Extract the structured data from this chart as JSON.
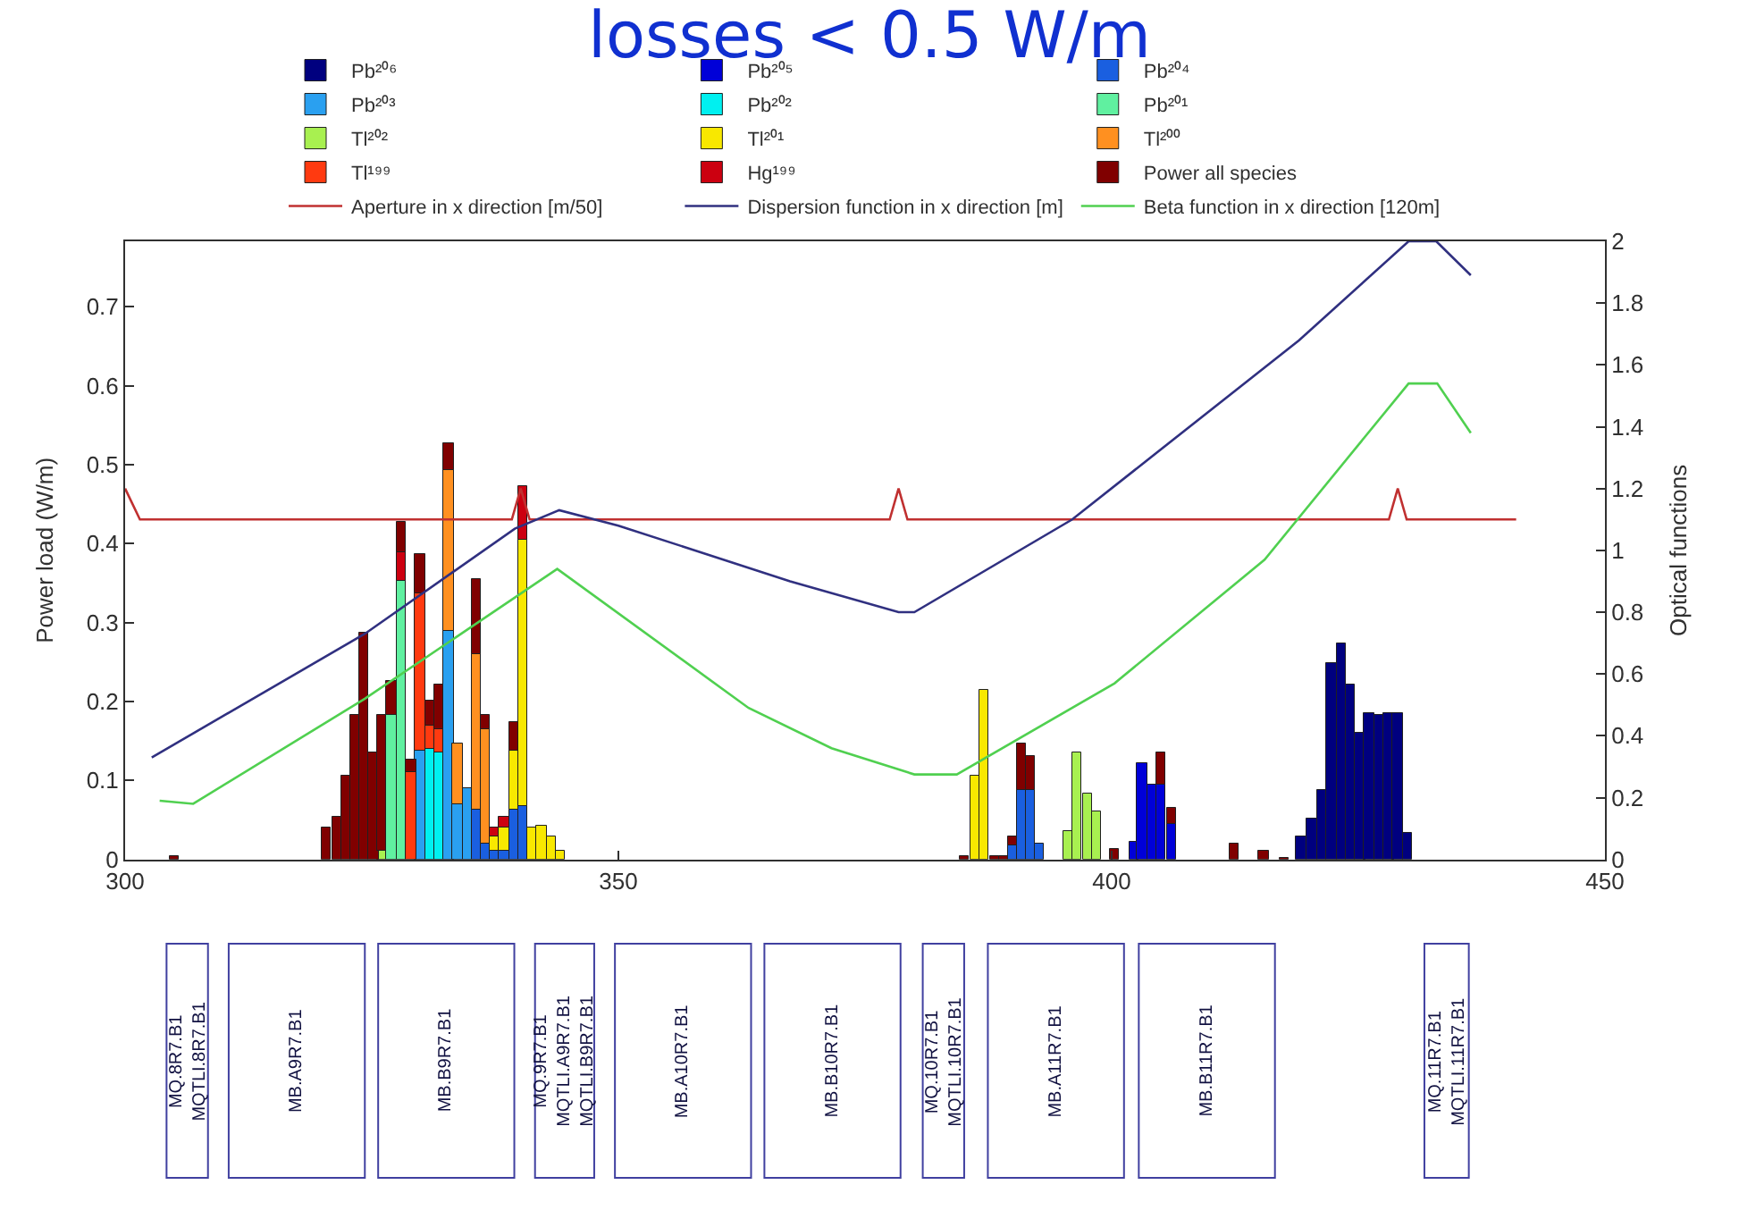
{
  "chart_data": [
    {
      "type": "bar",
      "stacked": true,
      "title": "losses < 0.5 W/m",
      "ylabel": "Power load (W/m)",
      "y2label": "Optical functions",
      "xlim": [
        300,
        450
      ],
      "xticks": [
        300,
        350,
        400,
        450
      ],
      "ylim": [
        0,
        0.783
      ],
      "yticks": [
        0,
        0.1,
        0.2,
        0.3,
        0.4,
        0.5,
        0.6,
        0.7
      ],
      "y2lim": [
        0,
        2
      ],
      "y2ticks": [
        0,
        0.2,
        0.4,
        0.6,
        0.8,
        1,
        1.2,
        1.4,
        1.6,
        1.8,
        2
      ],
      "legend": "top",
      "marker": "none",
      "line_style": "solid",
      "x": [
        305.0,
        320.4,
        321.4,
        322.4,
        323.3,
        324.2,
        325.2,
        326.0,
        327.0,
        328.0,
        329.0,
        329.9,
        330.9,
        331.8,
        332.8,
        333.7,
        334.7,
        335.6,
        336.5,
        337.4,
        338.4,
        339.4,
        340.3,
        341.2,
        342.2,
        343.2,
        344.1,
        385.1,
        386.1,
        387.0,
        388.1,
        389.0,
        389.9,
        390.8,
        391.7,
        392.7,
        395.6,
        396.5,
        397.5,
        398.5,
        400.3,
        402.3,
        403.1,
        404.1,
        405.0,
        406.0,
        412.4,
        415.4,
        417.5,
        419.2,
        420.3,
        421.3,
        422.3,
        423.3,
        424.2,
        425.2,
        426.1,
        427.1,
        428.1,
        429.0,
        430.0
      ],
      "series": [
        {
          "name": "Pb²⁰⁶",
          "color": "#00007f",
          "values": [
            null,
            null,
            null,
            null,
            null,
            null,
            null,
            null,
            null,
            null,
            null,
            null,
            null,
            null,
            null,
            null,
            null,
            null,
            null,
            null,
            null,
            null,
            null,
            null,
            null,
            null,
            null,
            null,
            null,
            null,
            null,
            null,
            null,
            null,
            null,
            null,
            null,
            null,
            null,
            null,
            null,
            null,
            null,
            null,
            null,
            null,
            null,
            null,
            null,
            0.028,
            0.052,
            0.088,
            0.248,
            0.273,
            0.221,
            0.161,
            0.185,
            0.182,
            0.185,
            0.185,
            0.034
          ]
        },
        {
          "name": "Pb²⁰⁵",
          "color": "#0000d8",
          "values": [
            null,
            null,
            null,
            null,
            null,
            null,
            null,
            null,
            null,
            null,
            null,
            null,
            null,
            null,
            null,
            null,
            null,
            null,
            null,
            null,
            null,
            null,
            null,
            null,
            null,
            null,
            null,
            null,
            null,
            null,
            null,
            null,
            null,
            null,
            null,
            null,
            null,
            null,
            null,
            null,
            null,
            0.022,
            0.121,
            0.094,
            0.094,
            0.045,
            null,
            null,
            null,
            null,
            null,
            null,
            null,
            null,
            null,
            null,
            null,
            null,
            null,
            null,
            null
          ]
        },
        {
          "name": "Pb²⁰⁴",
          "color": "#1a5fe0",
          "values": [
            null,
            null,
            null,
            null,
            null,
            null,
            null,
            null,
            null,
            null,
            null,
            null,
            null,
            null,
            null,
            null,
            null,
            0.063,
            0.02,
            0.01,
            0.01,
            0.063,
            0.068,
            null,
            null,
            null,
            null,
            null,
            null,
            null,
            null,
            null,
            0.018,
            0.088,
            0.088,
            0.021,
            null,
            null,
            null,
            null,
            null,
            null,
            null,
            null,
            null,
            null,
            null,
            null,
            null,
            null,
            null,
            null,
            null,
            null,
            null,
            null,
            null,
            null,
            null,
            null,
            null
          ]
        },
        {
          "name": "Pb²⁰³",
          "color": "#2aa0f0",
          "values": [
            null,
            null,
            null,
            null,
            null,
            null,
            null,
            null,
            null,
            null,
            null,
            0.138,
            null,
            null,
            0.29,
            0.07,
            0.091,
            null,
            null,
            null,
            null,
            null,
            null,
            null,
            null,
            null,
            null,
            null,
            null,
            null,
            null,
            null,
            null,
            null,
            null,
            null,
            null,
            null,
            null,
            null,
            null,
            null,
            null,
            null,
            null,
            null,
            null,
            null,
            null,
            null,
            null,
            null,
            null,
            null,
            null,
            null,
            null,
            null,
            null,
            null,
            null
          ]
        },
        {
          "name": "Pb²⁰²",
          "color": "#00f0f0",
          "values": [
            null,
            null,
            null,
            null,
            null,
            null,
            null,
            null,
            null,
            null,
            null,
            null,
            0.14,
            0.135,
            null,
            null,
            null,
            null,
            null,
            null,
            null,
            null,
            null,
            null,
            null,
            null,
            null,
            null,
            null,
            null,
            null,
            null,
            null,
            null,
            null,
            null,
            null,
            null,
            null,
            null,
            null,
            null,
            null,
            null,
            null,
            null,
            null,
            null,
            null,
            null,
            null,
            null,
            null,
            null,
            null,
            null,
            null,
            null,
            null,
            null,
            null
          ]
        },
        {
          "name": "Pb²⁰¹",
          "color": "#60f0a0",
          "values": [
            null,
            null,
            null,
            null,
            null,
            null,
            null,
            null,
            0.182,
            0.353,
            null,
            null,
            null,
            null,
            null,
            null,
            null,
            null,
            null,
            null,
            null,
            null,
            null,
            null,
            null,
            null,
            null,
            null,
            null,
            null,
            null,
            null,
            null,
            null,
            null,
            null,
            null,
            null,
            null,
            null,
            null,
            null,
            null,
            null,
            null,
            null,
            null,
            null,
            null,
            null,
            null,
            null,
            null,
            null,
            null,
            null,
            null,
            null,
            null,
            null,
            null
          ]
        },
        {
          "name": "Tl²⁰²",
          "color": "#a8f050",
          "values": [
            null,
            null,
            null,
            null,
            null,
            null,
            null,
            0.012,
            null,
            null,
            null,
            null,
            null,
            null,
            null,
            null,
            null,
            null,
            null,
            null,
            null,
            null,
            null,
            null,
            null,
            null,
            null,
            null,
            null,
            null,
            null,
            null,
            null,
            null,
            null,
            null,
            0.036,
            0.135,
            0.083,
            0.061,
            null,
            null,
            null,
            null,
            null,
            null,
            null,
            null,
            null,
            null,
            null,
            null,
            null,
            null,
            null,
            null,
            null,
            null,
            null,
            null,
            null
          ]
        },
        {
          "name": "Tl²⁰¹",
          "color": "#f8e800",
          "values": [
            null,
            null,
            null,
            null,
            null,
            null,
            null,
            null,
            null,
            null,
            null,
            null,
            null,
            null,
            null,
            null,
            null,
            null,
            null,
            0.02,
            0.03,
            0.075,
            0.338,
            0.041,
            0.042,
            0.03,
            0.011,
            null,
            0.107,
            0.214,
            null,
            null,
            null,
            null,
            null,
            null,
            null,
            null,
            null,
            null,
            null,
            null,
            null,
            null,
            null,
            null,
            null,
            null,
            null,
            null,
            null,
            null,
            null,
            null,
            null,
            null,
            null,
            null,
            null,
            null,
            null
          ]
        },
        {
          "name": "Tl²⁰⁰",
          "color": "#ff9020",
          "values": [
            null,
            null,
            null,
            null,
            null,
            null,
            null,
            null,
            null,
            null,
            null,
            null,
            null,
            null,
            0.204,
            0.076,
            null,
            0.197,
            0.145,
            null,
            null,
            null,
            null,
            null,
            null,
            null,
            null,
            null,
            null,
            null,
            null,
            null,
            null,
            null,
            null,
            null,
            null,
            null,
            null,
            null,
            null,
            null,
            null,
            null,
            null,
            null,
            null,
            null,
            null,
            null,
            null,
            null,
            null,
            null,
            null,
            null,
            null,
            null,
            null,
            null,
            null
          ]
        },
        {
          "name": "Tl¹⁹⁹",
          "color": "#ff3a10",
          "values": [
            null,
            null,
            null,
            null,
            null,
            null,
            null,
            null,
            null,
            null,
            0.11,
            0.2,
            0.03,
            0.03,
            null,
            null,
            null,
            null,
            null,
            null,
            null,
            null,
            null,
            null,
            null,
            null,
            null,
            null,
            null,
            null,
            null,
            null,
            null,
            null,
            null,
            null,
            null,
            null,
            null,
            null,
            null,
            null,
            null,
            null,
            null,
            null,
            null,
            null,
            null,
            null,
            null,
            null,
            null,
            null,
            null,
            null,
            null,
            null,
            null,
            null,
            null
          ]
        },
        {
          "name": "Hg¹⁹⁹",
          "color": "#cc0010",
          "values": [
            null,
            null,
            null,
            null,
            null,
            null,
            null,
            null,
            null,
            0.035,
            null,
            null,
            null,
            null,
            null,
            null,
            null,
            null,
            null,
            0.011,
            0.013,
            null,
            0.066,
            null,
            null,
            null,
            null,
            null,
            null,
            null,
            null,
            null,
            null,
            null,
            null,
            null,
            null,
            null,
            null,
            null,
            null,
            null,
            null,
            null,
            null,
            null,
            null,
            null,
            null,
            null,
            null,
            null,
            null,
            null,
            null,
            null,
            null,
            null,
            null,
            null,
            null
          ]
        },
        {
          "name": "Power all species",
          "color": "#800000",
          "values": [
            0.005,
            0.041,
            0.053,
            0.107,
            0.182,
            0.287,
            0.136,
            0.17,
            0.045,
            0.04,
            0.017,
            0.048,
            0.031,
            0.056,
            0.033,
            null,
            null,
            0.096,
            0.017,
            null,
            null,
            0.036,
            null,
            null,
            null,
            null,
            null,
            0.005,
            null,
            null,
            0.005,
            0.005,
            0.01,
            0.058,
            0.042,
            null,
            null,
            null,
            null,
            null,
            0.014,
            null,
            null,
            null,
            0.041,
            0.021,
            0.019,
            0.011,
            0.003,
            null,
            null,
            null,
            null,
            null,
            null,
            null,
            null,
            null,
            null,
            null,
            null
          ]
        },
        {
          "name": "Aperture in x direction [m/50]",
          "type": "line",
          "axis": "y2",
          "color": "#c03030",
          "x": [
            300,
            301.5,
            339.2,
            340.1,
            341,
            377.5,
            378.4,
            379.3,
            428.1,
            429,
            429.9,
            441
          ],
          "values": [
            1.2,
            1.1,
            1.1,
            1.2,
            1.1,
            1.1,
            1.2,
            1.1,
            1.1,
            1.2,
            1.1,
            1.1
          ]
        },
        {
          "name": "Dispersion function in x direction [m]",
          "type": "line",
          "axis": "y2",
          "color": "#303080",
          "x": [
            302.7,
            324.3,
            339.5,
            344,
            350,
            367.4,
            378.4,
            380,
            396,
            419,
            430.1,
            432.9,
            436.4
          ],
          "values": [
            0.33,
            0.73,
            1.07,
            1.13,
            1.08,
            0.9,
            0.8,
            0.8,
            1.1,
            1.68,
            2.0,
            2.0,
            1.89
          ]
        },
        {
          "name": "Beta function in x direction [120m]",
          "type": "line",
          "axis": "y2",
          "color": "#50d050",
          "x": [
            303.5,
            306.9,
            324.3,
            343.8,
            363.2,
            371.6,
            380,
            384.3,
            400.3,
            415.5,
            430.1,
            433,
            436.4
          ],
          "values": [
            0.19,
            0.18,
            0.52,
            0.94,
            0.49,
            0.36,
            0.275,
            0.275,
            0.57,
            0.97,
            1.54,
            1.54,
            1.38
          ]
        }
      ],
      "annotations": [
        "MQ.8R7.B1\nMQTLI.8R7.B1",
        "MB.A9R7.B1",
        "MB.B9R7.B1",
        "MQ.9R7.B1\nMQTLI.A9R7.B1\nMQTLI.B9R7.B1",
        "MB.A10R7.B1",
        "MB.B10R7.B1",
        "MQ.10R7.B1\nMQTLI.10R7.B1",
        "MB.A11R7.B1",
        "MB.B11R7.B1",
        "MQ.11R7.B1\nMQTLI.11R7.B1"
      ]
    }
  ]
}
